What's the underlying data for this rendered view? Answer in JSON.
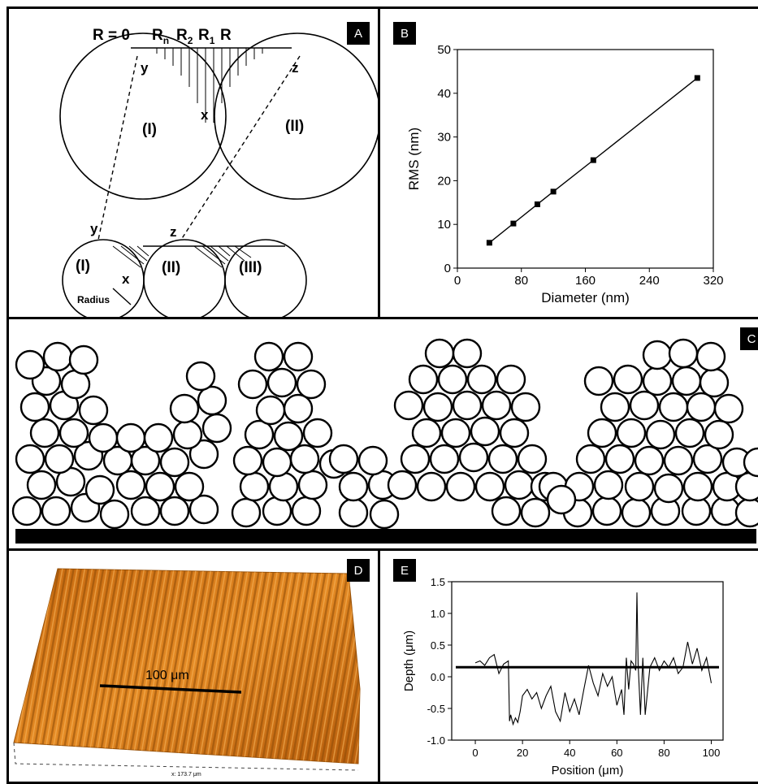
{
  "panel_a": {
    "label": "A",
    "header": {
      "r0": "R = 0",
      "rn": "R",
      "rn_sub": "n",
      "r2": "R",
      "r2_sub": "2",
      "r1": "R",
      "r1_sub": "1",
      "r": "R"
    },
    "top": {
      "y": "y",
      "x": "x",
      "z": "z",
      "p1": "(I)",
      "p2": "(II)"
    },
    "bottom": {
      "y": "y",
      "z": "z",
      "x": "x",
      "p1": "(I)",
      "p2": "(II)",
      "p3": "(III)",
      "radius": "Radius"
    }
  },
  "panel_b": {
    "label": "B"
  },
  "panel_c": {
    "label": "C"
  },
  "panel_d": {
    "label": "D",
    "scale_bar": "100 μm",
    "x_extent": "x: 173.7 μm"
  },
  "panel_e": {
    "label": "E"
  },
  "chart_data": [
    {
      "type": "line",
      "xlabel": "Diameter (nm)",
      "ylabel": "RMS (nm)",
      "xlim": [
        0,
        320
      ],
      "ylim": [
        0,
        50
      ],
      "xticks": [
        0,
        80,
        160,
        240,
        320
      ],
      "yticks": [
        0,
        10,
        20,
        30,
        40,
        50
      ],
      "markers": "square",
      "x": [
        40,
        70,
        100,
        120,
        170,
        300
      ],
      "y": [
        5.8,
        10.2,
        14.6,
        17.5,
        24.7,
        43.5
      ]
    },
    {
      "type": "line",
      "xlabel": "Position (μm)",
      "ylabel": "Depth (μm)",
      "xlim": [
        -10,
        105
      ],
      "ylim": [
        -1.0,
        1.5
      ],
      "xticks": [
        0,
        20,
        40,
        60,
        80,
        100
      ],
      "yticks": [
        -1.0,
        -0.5,
        0.0,
        0.5,
        1.0,
        1.5
      ],
      "reference_line_y": 0.15,
      "x": [
        0,
        2,
        4,
        6,
        8,
        10,
        12,
        14,
        14.5,
        15,
        16,
        17,
        18,
        19,
        20,
        22,
        24,
        26,
        28,
        30,
        32,
        34,
        36,
        38,
        40,
        42,
        44,
        46,
        48,
        50,
        52,
        54,
        56,
        58,
        60,
        62,
        63,
        64,
        65,
        66,
        67,
        68,
        68.5,
        69,
        70,
        71,
        72,
        74,
        76,
        78,
        80,
        82,
        84,
        86,
        88,
        90,
        92,
        94,
        96,
        98,
        100
      ],
      "y": [
        0.22,
        0.25,
        0.18,
        0.3,
        0.35,
        0.05,
        0.2,
        0.25,
        -0.7,
        -0.6,
        -0.75,
        -0.65,
        -0.72,
        -0.55,
        -0.3,
        -0.2,
        -0.35,
        -0.25,
        -0.5,
        -0.3,
        -0.15,
        -0.55,
        -0.7,
        -0.25,
        -0.55,
        -0.35,
        -0.6,
        -0.2,
        0.18,
        -0.1,
        -0.3,
        0.05,
        -0.15,
        0.0,
        -0.45,
        -0.2,
        -0.6,
        0.3,
        -0.2,
        0.25,
        0.2,
        0.1,
        1.33,
        0.2,
        -0.6,
        0.3,
        -0.6,
        0.15,
        0.3,
        0.1,
        0.25,
        0.15,
        0.3,
        0.05,
        0.15,
        0.55,
        0.2,
        0.45,
        0.1,
        0.3,
        -0.1
      ]
    }
  ]
}
